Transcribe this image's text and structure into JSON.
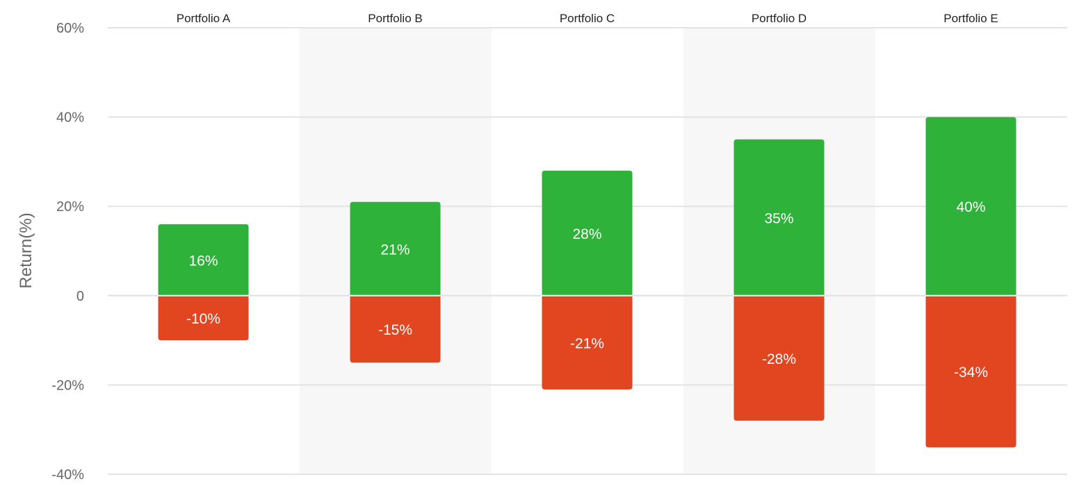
{
  "chart_data": {
    "type": "bar",
    "categories": [
      "Portfolio A",
      "Portfolio B",
      "Portfolio C",
      "Portfolio D",
      "Portfolio E"
    ],
    "series": [
      {
        "values": [
          16,
          21,
          28,
          35,
          40
        ],
        "labels": [
          "16%",
          "21%",
          "28%",
          "35%",
          "40%"
        ],
        "color": "#2eb23a"
      },
      {
        "values": [
          -10,
          -15,
          -21,
          -28,
          -34
        ],
        "labels": [
          "-10%",
          "-15%",
          "-21%",
          "-28%",
          "-34%"
        ],
        "color": "#e14620"
      }
    ],
    "ylabel": "Return(%)",
    "ylim": [
      -40,
      60
    ],
    "yticks": [
      {
        "value": 60,
        "label": "60%"
      },
      {
        "value": 40,
        "label": "40%"
      },
      {
        "value": 20,
        "label": "20%"
      },
      {
        "value": 0,
        "label": "0"
      },
      {
        "value": -20,
        "label": "-20%"
      },
      {
        "value": -40,
        "label": "-40%"
      }
    ],
    "stacked": true,
    "grid": true,
    "alternating_band_color": "#f7f7f7",
    "category_label_position": "top"
  }
}
